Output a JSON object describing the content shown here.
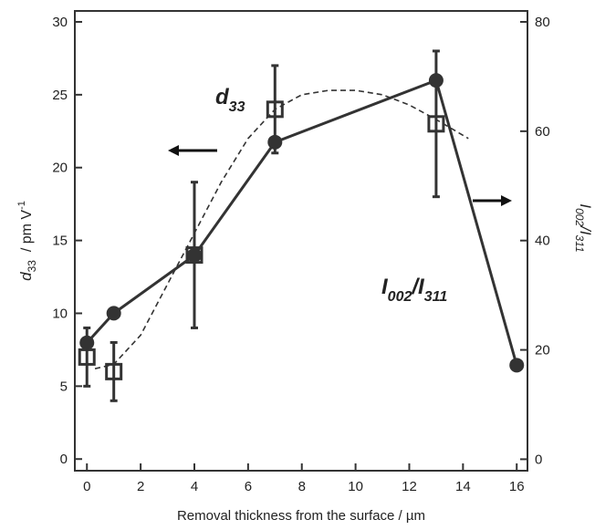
{
  "chart_data": {
    "type": "scatter",
    "x_label": "Removal thickness from the surface / µm",
    "y_label": {
      "main": "d",
      "sub": "33",
      "rest": "  / pm V",
      "sup": "-1"
    },
    "y2_label": {
      "a": "I",
      "a_sub": "002",
      "b": "/I",
      "b_sub": "311"
    },
    "annotations": [
      {
        "main": "d",
        "sub": "33"
      },
      {
        "a": "I",
        "a_sub": "002",
        "b": "/I",
        "b_sub": "311"
      }
    ],
    "xlim": [
      -0.45,
      16.4
    ],
    "xticks": [
      0,
      2,
      4,
      6,
      8,
      10,
      12,
      14,
      16
    ],
    "ylim": [
      -0.8,
      30.75
    ],
    "yticks": [
      0,
      5,
      10,
      15,
      20,
      25,
      30
    ],
    "y2lim": [
      -2.1,
      82
    ],
    "y2ticks": [
      0,
      20,
      40,
      60,
      80
    ],
    "series": [
      {
        "marker": "square",
        "color": "#333333",
        "x": [
          0,
          1,
          4,
          7,
          13
        ],
        "values": [
          7,
          6,
          14,
          24,
          23
        ],
        "errors": [
          2,
          2,
          5,
          3,
          5
        ]
      },
      {
        "marker": "circle",
        "color": "#333333",
        "axis": "y2",
        "x": [
          0,
          1,
          4,
          7,
          13,
          16
        ],
        "values": [
          21.3,
          26.7,
          37.3,
          58,
          69.3,
          17.2
        ]
      }
    ],
    "fit_curve": {
      "color": "#333333",
      "x": [
        0.3,
        1,
        2,
        3,
        4,
        5,
        6,
        7,
        8,
        9,
        10,
        11,
        12,
        13,
        14.2
      ],
      "values": [
        6.2,
        6.5,
        8.5,
        12,
        15.5,
        19,
        22,
        24,
        25,
        25.3,
        25.3,
        25,
        24.3,
        23.3,
        22
      ]
    }
  }
}
